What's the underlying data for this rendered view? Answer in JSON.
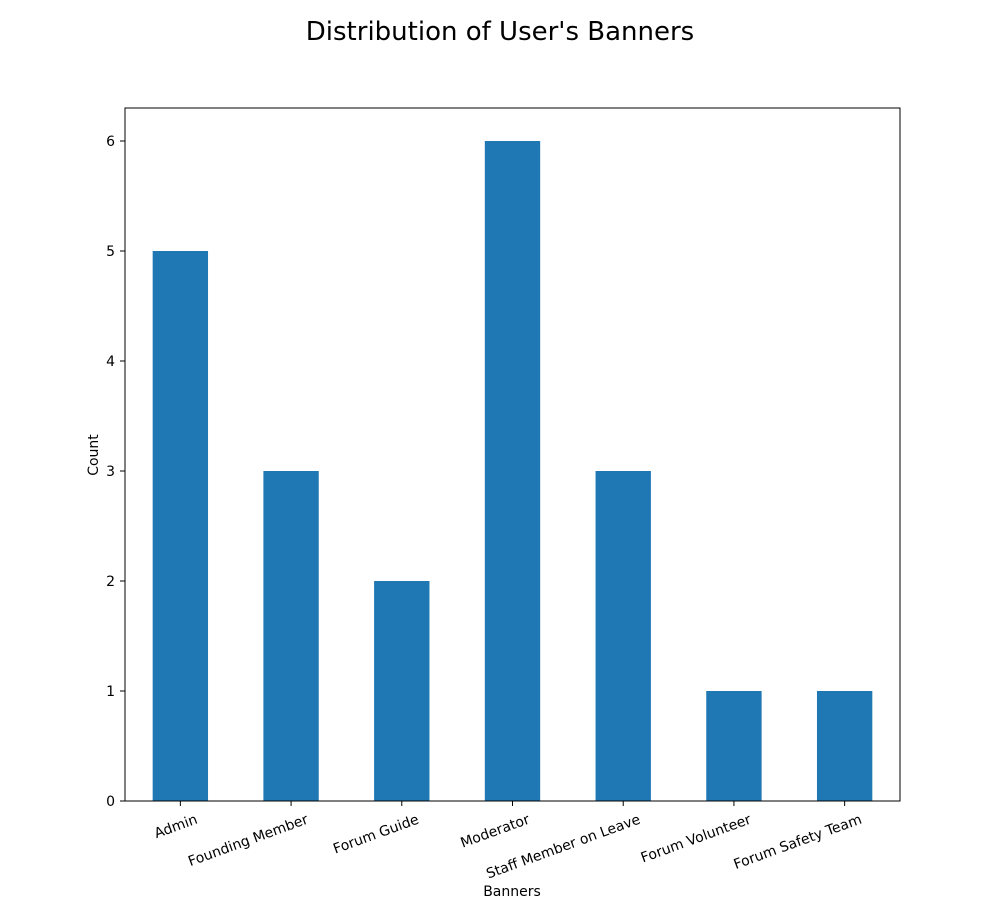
{
  "chart_data": {
    "type": "bar",
    "title": "Distribution of User's Banners",
    "xlabel": "Banners",
    "ylabel": "Count",
    "categories": [
      "Admin",
      "Founding Member",
      "Forum Guide",
      "Moderator",
      "Staff Member on Leave",
      "Forum Volunteer",
      "Forum Safety Team"
    ],
    "values": [
      5,
      3,
      2,
      6,
      3,
      1,
      1
    ],
    "ylim": [
      0,
      6.3
    ],
    "yticks": [
      0,
      1,
      2,
      3,
      4,
      5,
      6
    ],
    "grid": false,
    "bar_color": "#1f77b4"
  }
}
